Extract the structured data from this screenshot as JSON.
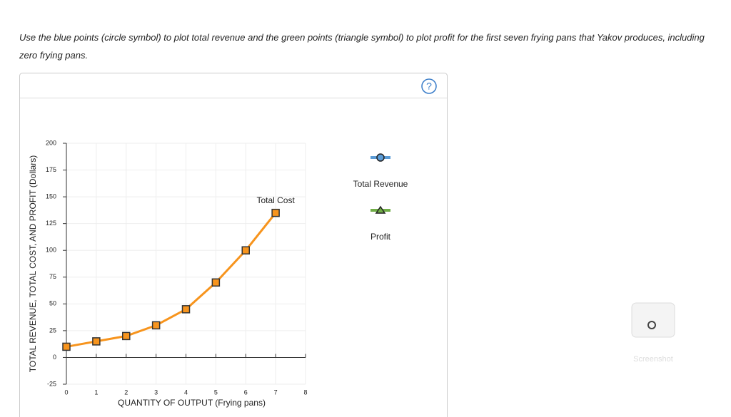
{
  "instructions": "Use the blue points (circle symbol) to plot total revenue and the green points (triangle symbol) to plot profit for the first seven frying pans that Yakov produces, including zero frying pans.",
  "help_icon": "?",
  "chart_data": {
    "type": "line",
    "xlabel": "QUANTITY OF OUTPUT (Frying pans)",
    "ylabel": "TOTAL REVENUE, TOTAL COST, AND PROFIT (Dollars)",
    "x": [
      0,
      1,
      2,
      3,
      4,
      5,
      6,
      7
    ],
    "series": [
      {
        "name": "Total Cost",
        "color": "#f7941d",
        "values": [
          10,
          15,
          20,
          30,
          45,
          70,
          100,
          135
        ]
      }
    ],
    "xlim": [
      0,
      8
    ],
    "ylim": [
      -25,
      200
    ],
    "xticks": [
      0,
      1,
      2,
      3,
      4,
      5,
      6,
      7,
      8
    ],
    "yticks": [
      -25,
      0,
      25,
      50,
      75,
      100,
      125,
      150,
      175,
      200
    ],
    "grid": true
  },
  "palette": [
    {
      "name": "Total Revenue",
      "color": "#5b9bd5",
      "symbol": "circle"
    },
    {
      "name": "Profit",
      "color": "#70ad47",
      "symbol": "triangle"
    }
  ],
  "screenshot_label": "Screenshot"
}
